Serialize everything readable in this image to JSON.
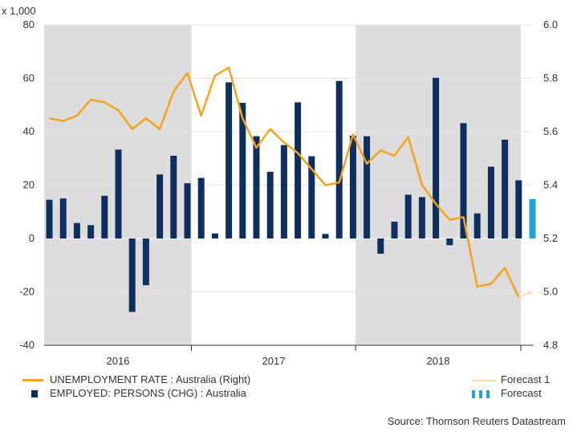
{
  "chart_data": {
    "type": "bar+line",
    "title": "",
    "units_label": "x 1,000",
    "left_axis": {
      "ticks": [
        -40,
        -20,
        0,
        20,
        40,
        60,
        80
      ],
      "ylim": [
        -40,
        80
      ],
      "tick_labels": [
        "-40",
        "-20",
        "0",
        "20",
        "40",
        "60",
        "80"
      ]
    },
    "right_axis": {
      "ticks": [
        4.8,
        5.0,
        5.2,
        5.4,
        5.6,
        5.8,
        6.0
      ],
      "ylim": [
        4.8,
        6.0
      ],
      "tick_labels": [
        "4.8",
        "5.0",
        "5.2",
        "5.4",
        "5.6",
        "5.8",
        "6.0"
      ]
    },
    "x_period_labels": [
      "2016",
      "2017",
      "2018"
    ],
    "shaded_years": [
      "2016",
      "2018"
    ],
    "months": [
      "2015-11",
      "2015-12",
      "2016-01",
      "2016-02",
      "2016-03",
      "2016-04",
      "2016-05",
      "2016-06",
      "2016-07",
      "2016-08",
      "2016-09",
      "2016-10",
      "2016-11",
      "2016-12",
      "2017-01",
      "2017-02",
      "2017-03",
      "2017-04",
      "2017-05",
      "2017-06",
      "2017-07",
      "2017-08",
      "2017-09",
      "2017-10",
      "2017-11",
      "2017-12",
      "2018-01",
      "2018-02",
      "2018-03",
      "2018-04",
      "2018-05",
      "2018-06",
      "2018-07",
      "2018-08",
      "2018-09",
      "2018-10",
      "2018-11",
      "2018-12",
      "2019-01"
    ],
    "series": [
      {
        "name": "EMPLOYED: PERSONS (CHG) : Australia",
        "axis": "left",
        "kind": "bar",
        "color": "#0d2f5e",
        "values": [
          14.5,
          15,
          5.8,
          5,
          16,
          33.3,
          -27.5,
          -17.5,
          24,
          31,
          20.7,
          22.7,
          1.9,
          58.5,
          50.8,
          38.3,
          25,
          35,
          51,
          30.8,
          1.7,
          59,
          38.5,
          38.3,
          -5.7,
          6.3,
          16.4,
          15.5,
          60.2,
          -2.5,
          43.2,
          9.4,
          26.9,
          37,
          21.8,
          null
        ]
      },
      {
        "name": "Forecast",
        "axis": "left",
        "kind": "bar",
        "color": "#1fa3dd",
        "index": 35,
        "values": [
          14.8
        ]
      },
      {
        "name": "UNEMPLOYMENT RATE : Australia (Right)",
        "axis": "right",
        "kind": "line",
        "color": "#f5a21c",
        "values": [
          5.65,
          5.64,
          5.66,
          5.72,
          5.71,
          5.68,
          5.61,
          5.65,
          5.61,
          5.75,
          5.82,
          5.66,
          5.81,
          5.84,
          5.65,
          5.54,
          5.61,
          5.56,
          5.52,
          5.46,
          5.4,
          5.41,
          5.59,
          5.48,
          5.53,
          5.51,
          5.58,
          5.4,
          5.33,
          5.27,
          5.28,
          5.02,
          5.03,
          5.09,
          4.98
        ]
      },
      {
        "name": "Forecast 1",
        "axis": "right",
        "kind": "line",
        "color": "#fad9a6",
        "start_index": 34,
        "values": [
          4.98,
          5.0
        ]
      }
    ]
  },
  "legend": {
    "unemployment_label": "UNEMPLOYMENT RATE : Australia (Right)",
    "employed_label": "EMPLOYED: PERSONS (CHG) : Australia",
    "forecast1_label": "Forecast 1",
    "forecast_label": "Forecast"
  },
  "source": "Source: Thomson Reuters Datastream"
}
